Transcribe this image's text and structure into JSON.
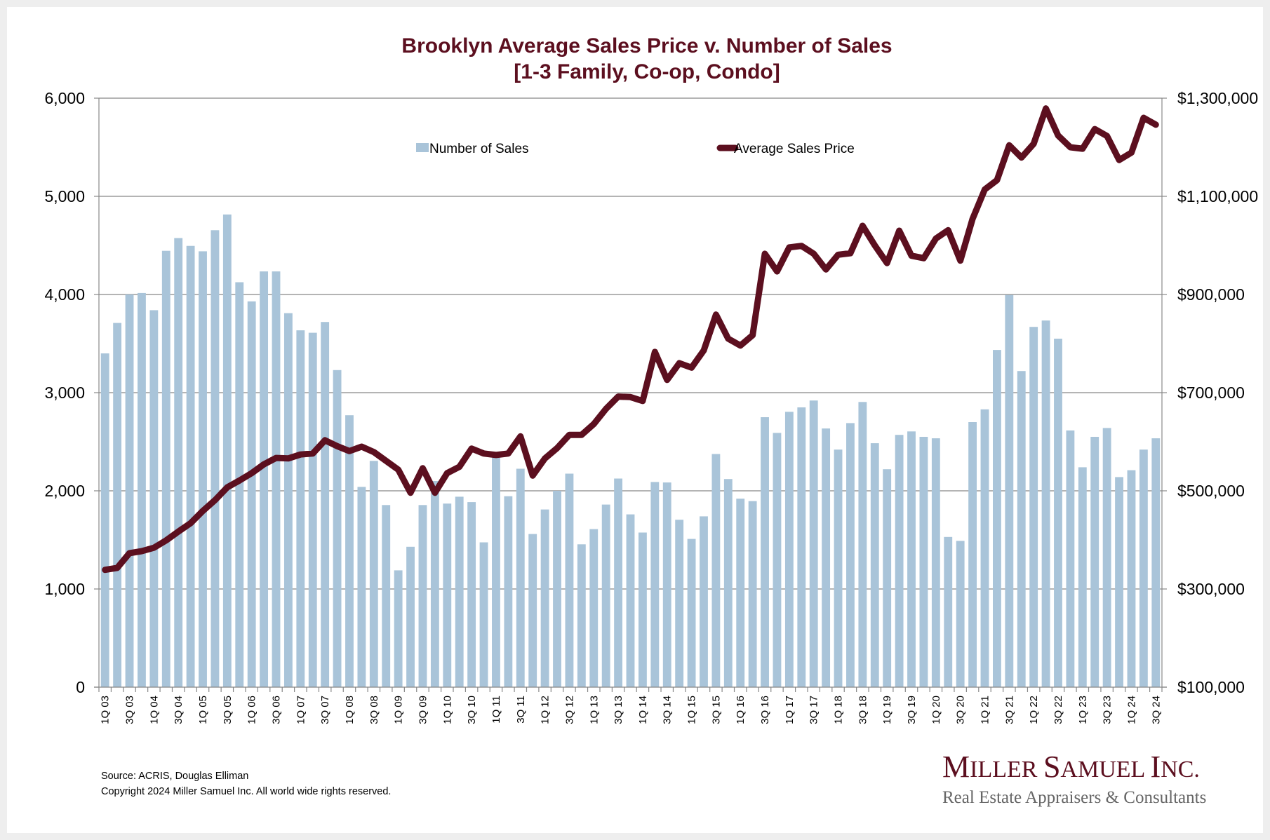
{
  "chart_data": {
    "type": "bar+line",
    "title": "Brooklyn Average Sales Price v. Number of Sales",
    "subtitle": "[1-3 Family, Co-op, Condo]",
    "xlabel": "",
    "ylabel_left": "",
    "ylabel_right": "",
    "ylim_left": [
      0,
      6000
    ],
    "ylim_right": [
      100000,
      1300000
    ],
    "yticks_left": [
      "0",
      "1,000",
      "2,000",
      "3,000",
      "4,000",
      "5,000",
      "6,000"
    ],
    "yticks_right": [
      "$100,000",
      "$300,000",
      "$500,000",
      "$700,000",
      "$900,000",
      "$1,100,000",
      "$1,300,000"
    ],
    "grid": true,
    "legend_position": "top-center",
    "categories": [
      "1Q 03",
      "2Q 03",
      "3Q 03",
      "4Q 03",
      "1Q 04",
      "2Q 04",
      "3Q 04",
      "4Q 04",
      "1Q 05",
      "2Q 05",
      "3Q 05",
      "4Q 05",
      "1Q 06",
      "2Q 06",
      "3Q 06",
      "4Q 06",
      "1Q 07",
      "2Q 07",
      "3Q 07",
      "4Q 07",
      "1Q 08",
      "2Q 08",
      "3Q 08",
      "4Q 08",
      "1Q 09",
      "2Q 09",
      "3Q 09",
      "4Q 09",
      "1Q 10",
      "2Q 10",
      "3Q 10",
      "4Q 10",
      "1Q 11",
      "2Q 11",
      "3Q 11",
      "4Q 11",
      "1Q 12",
      "2Q 12",
      "3Q 12",
      "4Q 12",
      "1Q 13",
      "2Q 13",
      "3Q 13",
      "4Q 13",
      "1Q 14",
      "2Q 14",
      "3Q 14",
      "4Q 14",
      "1Q 15",
      "2Q 15",
      "3Q 15",
      "4Q 15",
      "1Q 16",
      "2Q 16",
      "3Q 16",
      "4Q 16",
      "1Q 17",
      "2Q 17",
      "3Q 17",
      "4Q 17",
      "1Q 18",
      "2Q 18",
      "3Q 18",
      "4Q 18",
      "1Q 19",
      "2Q 19",
      "3Q 19",
      "4Q 19",
      "1Q 20",
      "2Q 20",
      "3Q 20",
      "4Q 20",
      "1Q 21",
      "2Q 21",
      "3Q 21",
      "4Q 21",
      "1Q 22",
      "2Q 22",
      "3Q 22",
      "4Q 22",
      "1Q 23",
      "2Q 23",
      "3Q 23",
      "4Q 23",
      "1Q 24",
      "2Q 24",
      "3Q 24"
    ],
    "xtick_labels_shown_every": 2,
    "series": [
      {
        "name": "Number of Sales",
        "type": "bar",
        "axis": "left",
        "color": "#a9c4d9",
        "values": [
          3400,
          3710,
          4000,
          4015,
          3840,
          4445,
          4575,
          4495,
          4440,
          4655,
          4815,
          4125,
          3930,
          4235,
          4235,
          3810,
          3635,
          3610,
          3720,
          3230,
          2770,
          2040,
          2305,
          1855,
          1190,
          1430,
          1855,
          2100,
          1870,
          1940,
          1885,
          1475,
          2345,
          1945,
          2225,
          1560,
          1810,
          2000,
          2175,
          1455,
          1610,
          1860,
          2125,
          1760,
          1575,
          2090,
          2085,
          1705,
          1510,
          1740,
          2375,
          2120,
          1920,
          1895,
          2750,
          2590,
          2805,
          2850,
          2920,
          2635,
          2420,
          2690,
          2905,
          2485,
          2220,
          2570,
          2605,
          2550,
          2535,
          1530,
          1490,
          2700,
          2830,
          3435,
          3995,
          3220,
          3670,
          3735,
          3550,
          2615,
          2240,
          2550,
          2640,
          2140,
          2210,
          2420,
          2535
        ]
      },
      {
        "name": "Average Sales Price",
        "type": "line",
        "axis": "right",
        "color": "#5c0f1f",
        "values": [
          339000,
          343000,
          373000,
          377000,
          384000,
          399000,
          417000,
          434000,
          459000,
          481000,
          507000,
          521000,
          536000,
          554000,
          567000,
          566000,
          574000,
          576000,
          603000,
          591000,
          581000,
          590000,
          579000,
          561000,
          543000,
          496000,
          546000,
          496000,
          536000,
          549000,
          586000,
          576000,
          573000,
          576000,
          611000,
          531000,
          566000,
          587000,
          614000,
          614000,
          636000,
          667000,
          692000,
          691000,
          683000,
          783000,
          726000,
          760000,
          751000,
          786000,
          859000,
          810000,
          796000,
          817000,
          983000,
          947000,
          996000,
          999000,
          983000,
          951000,
          981000,
          984000,
          1040000,
          1000000,
          964000,
          1030000,
          979000,
          974000,
          1014000,
          1031000,
          969000,
          1054000,
          1114000,
          1133000,
          1204000,
          1179000,
          1207000,
          1279000,
          1224000,
          1200000,
          1197000,
          1237000,
          1223000,
          1174000,
          1189000,
          1260000,
          1246000
        ]
      }
    ]
  },
  "legend": {
    "bars_label": "Number of Sales",
    "line_label": "Average Sales Price"
  },
  "footer": {
    "source": "Source: ACRIS, Douglas Elliman",
    "copyright": "Copyright 2024 Miller Samuel Inc.  All world wide rights reserved."
  },
  "logo": {
    "name_parts": [
      [
        "M",
        "ILLER "
      ],
      [
        "S",
        "AMUEL "
      ],
      [
        "I",
        "NC."
      ]
    ],
    "tagline": "Real Estate Appraisers & Consultants"
  },
  "colors": {
    "bar": "#a9c4d9",
    "line": "#5c0f1f",
    "title": "#5c0f1f",
    "grid": "#888888"
  }
}
